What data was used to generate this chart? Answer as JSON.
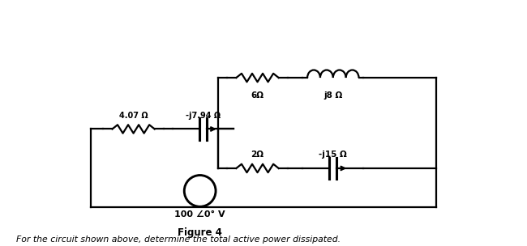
{
  "background_color": "#ffffff",
  "title": "Figure 4",
  "caption": "For the circuit shown above, determine the total active power dissipated.",
  "labels": {
    "r407": "4.07 Ω",
    "cap794": "-j7.94 Ω",
    "r6": "6Ω",
    "ind8": "j8 Ω",
    "r2": "2Ω",
    "cap15": "-j15 Ω",
    "vsrc": "100 ∠0° V"
  },
  "wire_color": "#000000",
  "lw": 1.6,
  "fig_width": 6.5,
  "fig_height": 3.04,
  "dpi": 100,
  "xlim": [
    0,
    13
  ],
  "ylim": [
    0,
    8
  ]
}
